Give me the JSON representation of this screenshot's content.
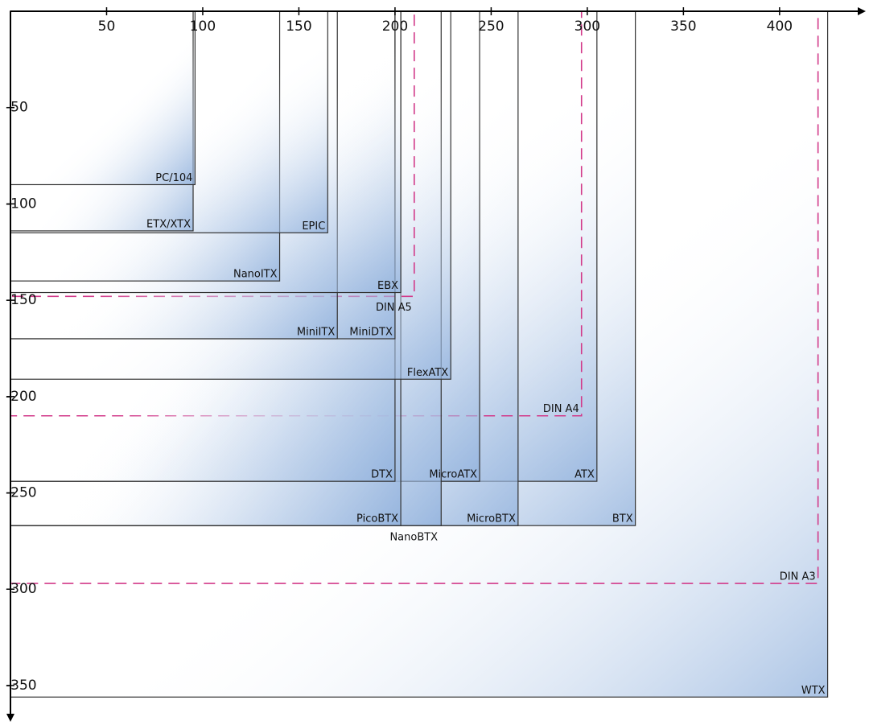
{
  "x_axis": {
    "xlim": [
      0,
      444
    ],
    "ticks": [
      50,
      100,
      150,
      200,
      250,
      300,
      350,
      400
    ]
  },
  "y_axis": {
    "ylim": [
      0,
      -368
    ],
    "ticks": [
      -50,
      -100,
      -150,
      -200,
      -250,
      -300,
      -350
    ]
  },
  "boards": [
    {
      "label": "WTX",
      "width": 425,
      "height": 356
    },
    {
      "label": "DIN A3",
      "width": 420,
      "height": 297,
      "dashed": true
    },
    {
      "label": "BTX",
      "width": 325,
      "height": 267
    },
    {
      "label": "ATX",
      "width": 305,
      "height": 244
    },
    {
      "label": "MicroBTX",
      "width": 264,
      "height": 267
    },
    {
      "label": "DIN A4",
      "width": 297,
      "height": 210,
      "dashed": true
    },
    {
      "label": "MicroATX",
      "width": 244,
      "height": 244
    },
    {
      "label": "NanoBTX",
      "width": 224,
      "height": 267
    },
    {
      "label": "PicoBTX",
      "width": 203,
      "height": 267
    },
    {
      "label": "DTX",
      "width": 200,
      "height": 244
    },
    {
      "label": "FlexATX",
      "width": 229,
      "height": 191
    },
    {
      "label": "DIN A5",
      "width": 210,
      "height": 148,
      "dashed": true
    },
    {
      "label": "MiniDTX",
      "width": 200,
      "height": 170
    },
    {
      "label": "MiniITX",
      "width": 170,
      "height": 170
    },
    {
      "label": "EBX",
      "width": 203,
      "height": 146
    },
    {
      "label": "NanoITX",
      "width": 140,
      "height": 140
    },
    {
      "label": "EPIC",
      "width": 165,
      "height": 115
    },
    {
      "label": "ETX/XTX",
      "width": 95,
      "height": 114
    },
    {
      "label": "PC/104",
      "width": 96,
      "height": 90
    }
  ]
}
